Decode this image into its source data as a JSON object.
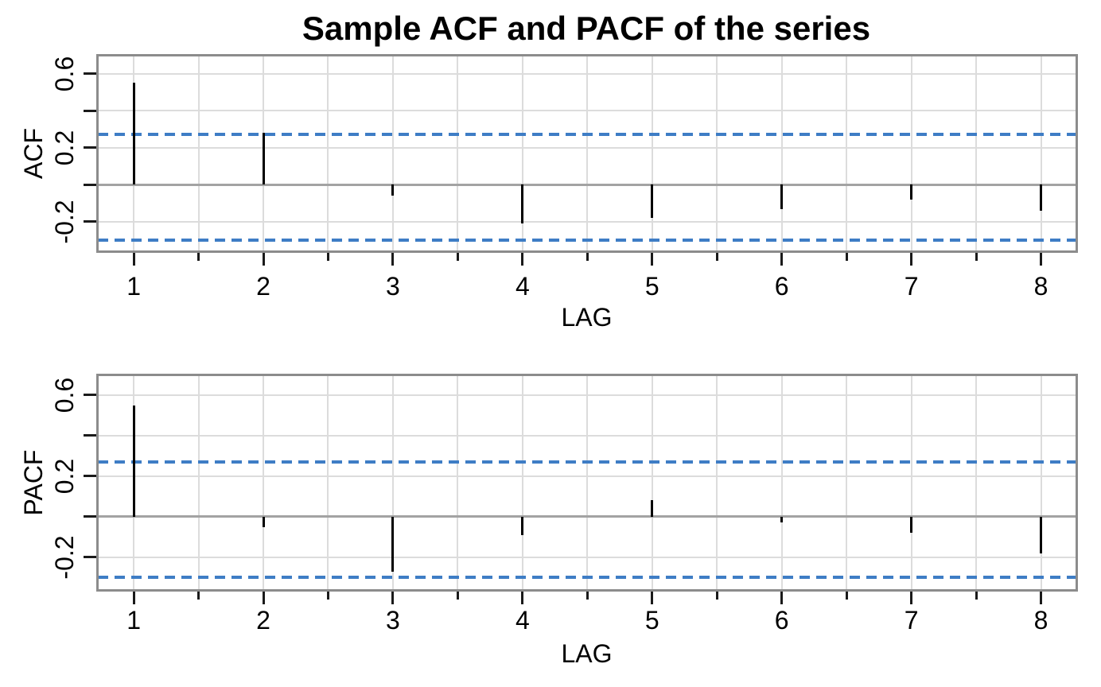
{
  "title": "Sample ACF and PACF of the series",
  "colors": {
    "background": "#ffffff",
    "spike": "#000000",
    "confidence_band": "#3e7dc5",
    "grid_line": "#dcdcdc",
    "zero_line": "#a3a3a3",
    "frame": "#8c8c8c",
    "tick": "#1a1a1a",
    "text": "#000000"
  },
  "chart_data": [
    {
      "type": "bar",
      "name": "acf",
      "title": "",
      "ylabel": "ACF",
      "xlabel": "LAG",
      "x": [
        1,
        2,
        3,
        4,
        5,
        6,
        7,
        8
      ],
      "values": [
        0.55,
        0.28,
        -0.06,
        -0.21,
        -0.18,
        -0.13,
        -0.08,
        -0.14
      ],
      "conf_band_upper": 0.27,
      "conf_band_lower": -0.3,
      "conf_band_style": "dashed",
      "xlim": [
        0.72,
        8.27
      ],
      "ylim": [
        -0.36,
        0.7
      ],
      "x_major_ticks": [
        1,
        2,
        3,
        4,
        5,
        6,
        7,
        8
      ],
      "x_major_tick_labels": [
        "1",
        "2",
        "3",
        "4",
        "5",
        "6",
        "7",
        "8"
      ],
      "x_minor_ticks": [
        1.5,
        2.5,
        3.5,
        4.5,
        5.5,
        6.5,
        7.5
      ],
      "y_ticks": [
        {
          "value": 0.6,
          "label": "0.6"
        },
        {
          "value": 0.4,
          "label": ""
        },
        {
          "value": 0.2,
          "label": "0.2"
        },
        {
          "value": 0.0,
          "label": ""
        },
        {
          "value": -0.2,
          "label": "-0.2"
        }
      ],
      "grid": true,
      "zero_line": true,
      "legend": "none"
    },
    {
      "type": "bar",
      "name": "pacf",
      "title": "",
      "ylabel": "PACF",
      "xlabel": "LAG",
      "x": [
        1,
        2,
        3,
        4,
        5,
        6,
        7,
        8
      ],
      "values": [
        0.55,
        -0.05,
        -0.27,
        -0.09,
        0.08,
        -0.03,
        -0.08,
        -0.18
      ],
      "conf_band_upper": 0.27,
      "conf_band_lower": -0.3,
      "conf_band_style": "dashed",
      "xlim": [
        0.72,
        8.27
      ],
      "ylim": [
        -0.36,
        0.7
      ],
      "x_major_ticks": [
        1,
        2,
        3,
        4,
        5,
        6,
        7,
        8
      ],
      "x_major_tick_labels": [
        "1",
        "2",
        "3",
        "4",
        "5",
        "6",
        "7",
        "8"
      ],
      "x_minor_ticks": [
        1.5,
        2.5,
        3.5,
        4.5,
        5.5,
        6.5,
        7.5
      ],
      "y_ticks": [
        {
          "value": 0.6,
          "label": "0.6"
        },
        {
          "value": 0.4,
          "label": ""
        },
        {
          "value": 0.2,
          "label": "0.2"
        },
        {
          "value": 0.0,
          "label": ""
        },
        {
          "value": -0.2,
          "label": "-0.2"
        }
      ],
      "grid": true,
      "zero_line": true,
      "legend": "none"
    }
  ]
}
